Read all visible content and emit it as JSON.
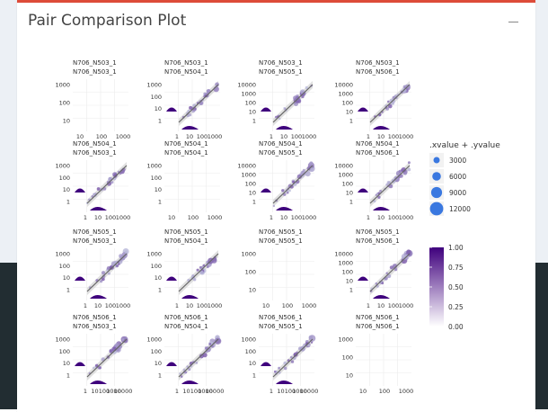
{
  "panel": {
    "title": "Pair Comparison Plot",
    "collapse_icon": "minus-icon"
  },
  "colors": {
    "accent": "#dd4b39",
    "series_dark": "#3f007d",
    "series_light": "#bcbddc",
    "size_legend": "#3a78e0",
    "band_background": "#ecf0f5",
    "sidebar_dark": "#222d32"
  },
  "chart_data": {
    "type": "scatter",
    "layout": "pairs-matrix",
    "samples": [
      "N706_N503_1",
      "N706_N504_1",
      "N706_N505_1",
      "N706_N506_1"
    ],
    "scale": "log10",
    "facets": [
      {
        "row": 0,
        "col": 0,
        "strip_top": "N706_N503_1",
        "strip_bottom": "N706_N503_1",
        "kind": "empty",
        "y_ticks": [
          "1000",
          "100",
          "10"
        ],
        "x_ticks": [
          "10",
          "100",
          "1000"
        ]
      },
      {
        "row": 0,
        "col": 1,
        "strip_top": "N706_N503_1",
        "strip_bottom": "N706_N504_1",
        "kind": "scatter",
        "y_ticks": [
          "1000",
          "100",
          "10",
          "1"
        ],
        "x_ticks": [
          "1",
          "10",
          "100",
          "1000"
        ]
      },
      {
        "row": 0,
        "col": 2,
        "strip_top": "N706_N503_1",
        "strip_bottom": "N706_N505_1",
        "kind": "scatter",
        "y_ticks": [
          "10000",
          "1000",
          "100",
          "10",
          "1"
        ],
        "x_ticks": [
          "1",
          "10",
          "100",
          "1000"
        ]
      },
      {
        "row": 0,
        "col": 3,
        "strip_top": "N706_N503_1",
        "strip_bottom": "N706_N506_1",
        "kind": "scatter",
        "y_ticks": [
          "10000",
          "1000",
          "100",
          "10",
          "1"
        ],
        "x_ticks": [
          "1",
          "10",
          "100",
          "1000"
        ]
      },
      {
        "row": 1,
        "col": 0,
        "strip_top": "N706_N504_1",
        "strip_bottom": "N706_N503_1",
        "kind": "scatter",
        "y_ticks": [
          "1000",
          "100",
          "10",
          "1"
        ],
        "x_ticks": [
          "1",
          "10",
          "100",
          "1000"
        ]
      },
      {
        "row": 1,
        "col": 1,
        "strip_top": "N706_N504_1",
        "strip_bottom": "N706_N504_1",
        "kind": "empty",
        "y_ticks": [
          "1000",
          "100",
          "10",
          "1"
        ],
        "x_ticks": [
          "10",
          "100",
          "1000"
        ]
      },
      {
        "row": 1,
        "col": 2,
        "strip_top": "N706_N504_1",
        "strip_bottom": "N706_N505_1",
        "kind": "scatter",
        "y_ticks": [
          "10000",
          "1000",
          "100",
          "10",
          "1"
        ],
        "x_ticks": [
          "1",
          "10",
          "100",
          "1000"
        ]
      },
      {
        "row": 1,
        "col": 3,
        "strip_top": "N706_N504_1",
        "strip_bottom": "N706_N506_1",
        "kind": "scatter",
        "y_ticks": [
          "10000",
          "1000",
          "100",
          "10",
          "1"
        ],
        "x_ticks": [
          "1",
          "10",
          "100",
          "1000"
        ]
      },
      {
        "row": 2,
        "col": 0,
        "strip_top": "N706_N505_1",
        "strip_bottom": "N706_N503_1",
        "kind": "scatter",
        "y_ticks": [
          "1000",
          "100",
          "10",
          "1"
        ],
        "x_ticks": [
          "1",
          "10",
          "100",
          "1000"
        ]
      },
      {
        "row": 2,
        "col": 1,
        "strip_top": "N706_N505_1",
        "strip_bottom": "N706_N504_1",
        "kind": "scatter",
        "y_ticks": [
          "1000",
          "100",
          "10",
          "1"
        ],
        "x_ticks": [
          "1",
          "10",
          "100",
          "1000"
        ]
      },
      {
        "row": 2,
        "col": 2,
        "strip_top": "N706_N505_1",
        "strip_bottom": "N706_N505_1",
        "kind": "empty",
        "y_ticks": [
          "1000",
          "100",
          "10"
        ],
        "x_ticks": [
          "10",
          "100",
          "1000"
        ]
      },
      {
        "row": 2,
        "col": 3,
        "strip_top": "N706_N505_1",
        "strip_bottom": "N706_N506_1",
        "kind": "scatter",
        "y_ticks": [
          "10000",
          "1000",
          "100",
          "10",
          "1"
        ],
        "x_ticks": [
          "1",
          "10",
          "100",
          "1000"
        ]
      },
      {
        "row": 3,
        "col": 0,
        "strip_top": "N706_N506_1",
        "strip_bottom": "N706_N503_1",
        "kind": "scatter",
        "y_ticks": [
          "1000",
          "100",
          "10",
          "1"
        ],
        "x_ticks": [
          "1",
          "10",
          "100",
          "1000",
          "10000"
        ]
      },
      {
        "row": 3,
        "col": 1,
        "strip_top": "N706_N506_1",
        "strip_bottom": "N706_N504_1",
        "kind": "scatter",
        "y_ticks": [
          "1000",
          "100",
          "10",
          "1"
        ],
        "x_ticks": [
          "1",
          "10",
          "100",
          "1000",
          "10000"
        ]
      },
      {
        "row": 3,
        "col": 2,
        "strip_top": "N706_N506_1",
        "strip_bottom": "N706_N505_1",
        "kind": "scatter",
        "y_ticks": [
          "1000",
          "100",
          "10",
          "1"
        ],
        "x_ticks": [
          "1",
          "10",
          "100",
          "1000",
          "10000"
        ]
      },
      {
        "row": 3,
        "col": 3,
        "strip_top": "N706_N506_1",
        "strip_bottom": "N706_N506_1",
        "kind": "empty",
        "y_ticks": [
          "1000",
          "100",
          "10"
        ],
        "x_ticks": [
          "10",
          "100",
          "1000"
        ]
      }
    ],
    "legend_size": {
      "title": ".xvalue + .yvalue",
      "entries": [
        "3000",
        "6000",
        "9000",
        "12000"
      ],
      "values": [
        3000,
        6000,
        9000,
        12000
      ]
    },
    "legend_alpha": {
      "labels": [
        "1.00",
        "0.75",
        "0.50",
        "0.25",
        "0.00"
      ],
      "values": [
        1.0,
        0.75,
        0.5,
        0.25,
        0.0
      ]
    }
  }
}
